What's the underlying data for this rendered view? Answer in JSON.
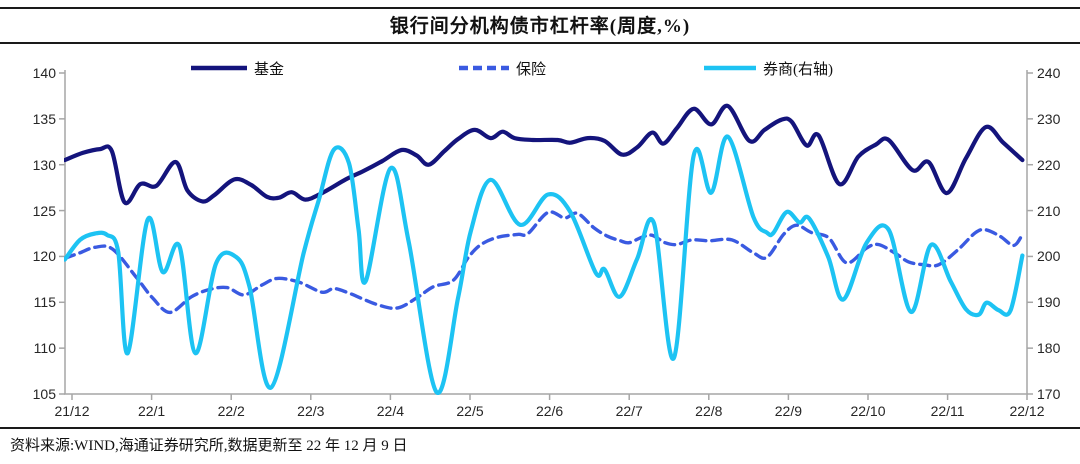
{
  "title": "银行间分机构债市杠杆率(周度,%)",
  "source_note": "资料来源:WIND,海通证券研究所,数据更新至 22 年 12 月 9 日",
  "colors": {
    "fund": "#14147c",
    "insurance": "#3a5ae1",
    "broker": "#1dc3f3",
    "axis": "#a6a6a6",
    "rule": "#1a1a1a",
    "tick_text": "#262626"
  },
  "chart_data": {
    "type": "line",
    "title": "银行间分机构债市杠杆率(周度,%)",
    "x_axis": {
      "tick_labels": [
        "21/12",
        "22/1",
        "22/2",
        "22/3",
        "22/4",
        "22/5",
        "22/6",
        "22/7",
        "22/8",
        "22/9",
        "22/10",
        "22/11",
        "22/12"
      ],
      "note": "x unit = months after 21/12, weekly data"
    },
    "y_axis_left": {
      "min": 105,
      "max": 140,
      "ticks": [
        140,
        135,
        130,
        125,
        120,
        115,
        110,
        105
      ]
    },
    "y_axis_right": {
      "min": 170,
      "max": 240,
      "ticks": [
        240,
        230,
        220,
        210,
        200,
        190,
        180,
        170
      ]
    },
    "grid": false,
    "legend_position": "top",
    "series": [
      {
        "name": "基金",
        "axis": "left",
        "style": "solid",
        "color": "#14147c",
        "points": [
          [
            -0.09,
            130.5
          ],
          [
            0.14,
            131.3
          ],
          [
            0.35,
            131.7
          ],
          [
            0.5,
            131.5
          ],
          [
            0.66,
            125.9
          ],
          [
            0.86,
            127.9
          ],
          [
            1.06,
            127.7
          ],
          [
            1.3,
            130.3
          ],
          [
            1.45,
            127.2
          ],
          [
            1.64,
            126.0
          ],
          [
            1.79,
            126.7
          ],
          [
            2.04,
            128.4
          ],
          [
            2.25,
            127.8
          ],
          [
            2.45,
            126.5
          ],
          [
            2.6,
            126.4
          ],
          [
            2.76,
            127.0
          ],
          [
            2.93,
            126.2
          ],
          [
            3.14,
            126.9
          ],
          [
            3.44,
            128.4
          ],
          [
            3.66,
            129.3
          ],
          [
            3.9,
            130.4
          ],
          [
            4.14,
            131.6
          ],
          [
            4.33,
            131.0
          ],
          [
            4.48,
            130.0
          ],
          [
            4.68,
            131.5
          ],
          [
            4.85,
            132.8
          ],
          [
            5.06,
            133.8
          ],
          [
            5.26,
            132.9
          ],
          [
            5.41,
            133.6
          ],
          [
            5.56,
            132.9
          ],
          [
            5.79,
            132.7
          ],
          [
            6.1,
            132.7
          ],
          [
            6.26,
            132.4
          ],
          [
            6.48,
            132.9
          ],
          [
            6.69,
            132.6
          ],
          [
            6.91,
            131.1
          ],
          [
            7.1,
            131.9
          ],
          [
            7.29,
            133.5
          ],
          [
            7.43,
            132.3
          ],
          [
            7.6,
            134.0
          ],
          [
            7.81,
            136.1
          ],
          [
            8.03,
            134.4
          ],
          [
            8.24,
            136.4
          ],
          [
            8.51,
            132.6
          ],
          [
            8.7,
            133.8
          ],
          [
            8.91,
            134.9
          ],
          [
            9.04,
            134.7
          ],
          [
            9.23,
            132.1
          ],
          [
            9.38,
            133.2
          ],
          [
            9.64,
            127.9
          ],
          [
            9.88,
            130.9
          ],
          [
            10.1,
            132.2
          ],
          [
            10.26,
            132.7
          ],
          [
            10.56,
            129.4
          ],
          [
            10.76,
            130.3
          ],
          [
            10.99,
            126.9
          ],
          [
            11.23,
            130.7
          ],
          [
            11.48,
            134.1
          ],
          [
            11.7,
            132.4
          ],
          [
            11.94,
            130.5
          ]
        ]
      },
      {
        "name": "保险",
        "axis": "left",
        "style": "dashed",
        "color": "#3a5ae1",
        "points": [
          [
            -0.09,
            119.8
          ],
          [
            0.1,
            120.4
          ],
          [
            0.29,
            121.0
          ],
          [
            0.51,
            120.8
          ],
          [
            0.81,
            117.7
          ],
          [
            1.01,
            115.5
          ],
          [
            1.23,
            113.9
          ],
          [
            1.5,
            115.6
          ],
          [
            1.73,
            116.4
          ],
          [
            1.95,
            116.6
          ],
          [
            2.16,
            115.8
          ],
          [
            2.39,
            116.9
          ],
          [
            2.58,
            117.6
          ],
          [
            2.85,
            117.2
          ],
          [
            3.14,
            116.1
          ],
          [
            3.29,
            116.5
          ],
          [
            3.48,
            116.0
          ],
          [
            3.85,
            114.7
          ],
          [
            4.1,
            114.4
          ],
          [
            4.35,
            115.6
          ],
          [
            4.54,
            116.7
          ],
          [
            4.79,
            117.4
          ],
          [
            4.98,
            119.9
          ],
          [
            5.14,
            121.3
          ],
          [
            5.35,
            122.1
          ],
          [
            5.6,
            122.4
          ],
          [
            5.73,
            122.5
          ],
          [
            5.98,
            124.8
          ],
          [
            6.19,
            124.2
          ],
          [
            6.35,
            124.7
          ],
          [
            6.56,
            123.1
          ],
          [
            6.73,
            122.2
          ],
          [
            6.89,
            121.7
          ],
          [
            7.0,
            121.5
          ],
          [
            7.16,
            122.1
          ],
          [
            7.29,
            122.3
          ],
          [
            7.45,
            121.5
          ],
          [
            7.6,
            121.3
          ],
          [
            7.79,
            121.8
          ],
          [
            8.0,
            121.7
          ],
          [
            8.29,
            121.8
          ],
          [
            8.56,
            120.4
          ],
          [
            8.73,
            119.9
          ],
          [
            8.94,
            122.4
          ],
          [
            9.1,
            123.4
          ],
          [
            9.29,
            122.6
          ],
          [
            9.51,
            122.0
          ],
          [
            9.73,
            119.3
          ],
          [
            9.98,
            120.9
          ],
          [
            10.13,
            121.3
          ],
          [
            10.35,
            120.3
          ],
          [
            10.51,
            119.4
          ],
          [
            10.7,
            119.1
          ],
          [
            10.89,
            119.1
          ],
          [
            11.14,
            120.8
          ],
          [
            11.35,
            122.6
          ],
          [
            11.48,
            122.9
          ],
          [
            11.66,
            122.2
          ],
          [
            11.83,
            121.2
          ],
          [
            11.94,
            122.4
          ]
        ]
      },
      {
        "name": "券商(右轴)",
        "axis": "right",
        "style": "solid",
        "color": "#1dc3f3",
        "points": [
          [
            -0.09,
            199.3
          ],
          [
            0.1,
            203.6
          ],
          [
            0.29,
            205.0
          ],
          [
            0.44,
            204.7
          ],
          [
            0.58,
            201.0
          ],
          [
            0.7,
            178.9
          ],
          [
            0.95,
            208.0
          ],
          [
            1.14,
            196.6
          ],
          [
            1.35,
            202.2
          ],
          [
            1.55,
            178.9
          ],
          [
            1.81,
            198.5
          ],
          [
            2.06,
            199.9
          ],
          [
            2.23,
            193.4
          ],
          [
            2.5,
            171.4
          ],
          [
            2.91,
            200.7
          ],
          [
            3.1,
            212.3
          ],
          [
            3.29,
            223.3
          ],
          [
            3.48,
            220.3
          ],
          [
            3.6,
            205.8
          ],
          [
            3.69,
            194.6
          ],
          [
            4.0,
            219.2
          ],
          [
            4.23,
            203.2
          ],
          [
            4.58,
            170.4
          ],
          [
            4.85,
            191.0
          ],
          [
            5.01,
            205.5
          ],
          [
            5.26,
            216.7
          ],
          [
            5.63,
            206.9
          ],
          [
            5.98,
            213.5
          ],
          [
            6.26,
            209.7
          ],
          [
            6.58,
            196.4
          ],
          [
            6.69,
            197.2
          ],
          [
            6.88,
            191.2
          ],
          [
            7.1,
            199.5
          ],
          [
            7.31,
            207.3
          ],
          [
            7.56,
            177.8
          ],
          [
            7.81,
            222.0
          ],
          [
            8.03,
            213.9
          ],
          [
            8.24,
            226.1
          ],
          [
            8.56,
            208.6
          ],
          [
            8.73,
            205.2
          ],
          [
            8.81,
            205.1
          ],
          [
            8.98,
            209.7
          ],
          [
            9.14,
            207.4
          ],
          [
            9.26,
            208.3
          ],
          [
            9.5,
            199.9
          ],
          [
            9.69,
            190.6
          ],
          [
            9.98,
            202.9
          ],
          [
            10.26,
            205.8
          ],
          [
            10.54,
            187.9
          ],
          [
            10.79,
            202.5
          ],
          [
            11.04,
            194.5
          ],
          [
            11.23,
            188.5
          ],
          [
            11.39,
            187.3
          ],
          [
            11.49,
            189.9
          ],
          [
            11.64,
            188.3
          ],
          [
            11.79,
            188.2
          ],
          [
            11.94,
            200.2
          ]
        ]
      }
    ]
  }
}
